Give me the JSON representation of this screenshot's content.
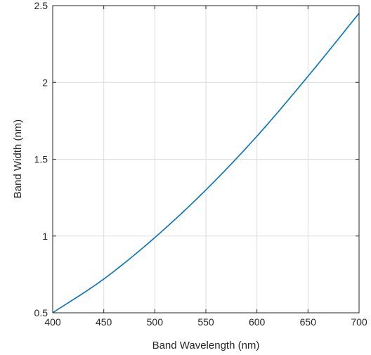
{
  "chart_data": {
    "type": "line",
    "title": "",
    "xlabel": "Band Wavelength (nm)",
    "ylabel": "Band Width (nm)",
    "xlim": [
      400,
      700
    ],
    "ylim": [
      0.5,
      2.5
    ],
    "xticks": [
      400,
      450,
      500,
      550,
      600,
      650,
      700
    ],
    "yticks": [
      0.5,
      1,
      1.5,
      2,
      2.5
    ],
    "xtick_labels": [
      "400",
      "450",
      "500",
      "550",
      "600",
      "650",
      "700"
    ],
    "ytick_labels": [
      "0.5",
      "1",
      "1.5",
      "2",
      "2.5"
    ],
    "grid": true,
    "series": [
      {
        "color": "#0072BD",
        "x": [
          400,
          450,
          500,
          550,
          600,
          650,
          700
        ],
        "y": [
          0.5,
          0.72,
          0.99,
          1.3,
          1.65,
          2.04,
          2.45
        ]
      }
    ]
  }
}
